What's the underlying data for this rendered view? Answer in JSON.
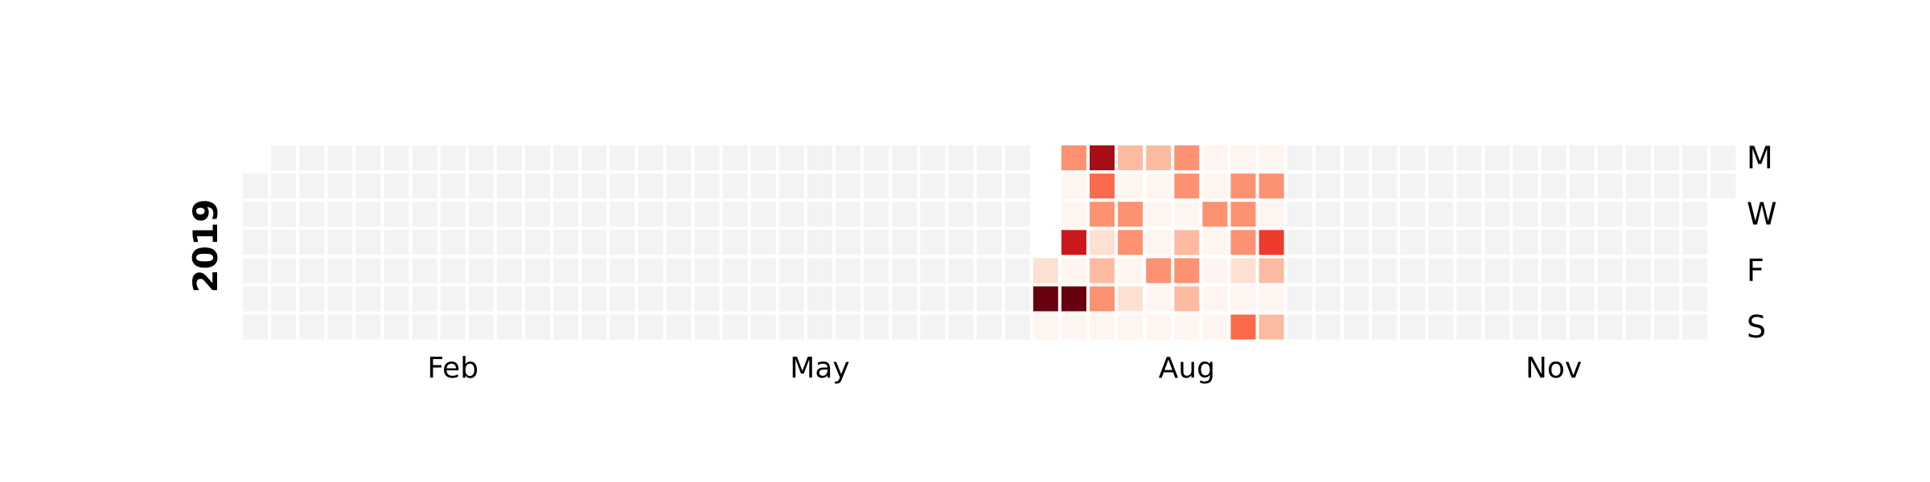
{
  "chart_data": {
    "type": "heatmap",
    "year": "2019",
    "month_labels": [
      {
        "label": "Feb",
        "week": 7
      },
      {
        "label": "May",
        "week": 20
      },
      {
        "label": "Aug",
        "week": 33
      },
      {
        "label": "Nov",
        "week": 46
      }
    ],
    "day_labels": [
      {
        "label": "M",
        "row": 0
      },
      {
        "label": "W",
        "row": 2
      },
      {
        "label": "F",
        "row": 4
      },
      {
        "label": "S",
        "row": 6
      }
    ],
    "weeks": 53,
    "first_day_row": 1,
    "last_day_row": 1,
    "empty_color": "#f3f3f3",
    "color_scale": [
      "#fff5f0",
      "#fee0d2",
      "#fcbba1",
      "#fc9272",
      "#fb6a4a",
      "#ef3b2c",
      "#cb181d",
      "#a50f15",
      "#67000d"
    ],
    "active_weeks": [
      {
        "week": 28,
        "values": [
          null,
          null,
          null,
          null,
          1,
          8,
          0
        ]
      },
      {
        "week": 29,
        "values": [
          3,
          0,
          0,
          6,
          0,
          8,
          0
        ]
      },
      {
        "week": 30,
        "values": [
          7,
          4,
          3,
          1,
          2,
          3,
          0
        ]
      },
      {
        "week": 31,
        "values": [
          2,
          0,
          3,
          3,
          0,
          1,
          0
        ]
      },
      {
        "week": 32,
        "values": [
          2,
          0,
          0,
          0,
          3,
          0,
          0
        ]
      },
      {
        "week": 33,
        "values": [
          3,
          3,
          0,
          2,
          3,
          2,
          0
        ]
      },
      {
        "week": 34,
        "values": [
          0,
          0,
          3,
          0,
          0,
          0,
          0
        ]
      },
      {
        "week": 35,
        "values": [
          0,
          3,
          3,
          3,
          1,
          0,
          4
        ]
      },
      {
        "week": 36,
        "values": [
          0,
          3,
          0,
          5,
          2,
          0,
          2
        ]
      }
    ]
  }
}
